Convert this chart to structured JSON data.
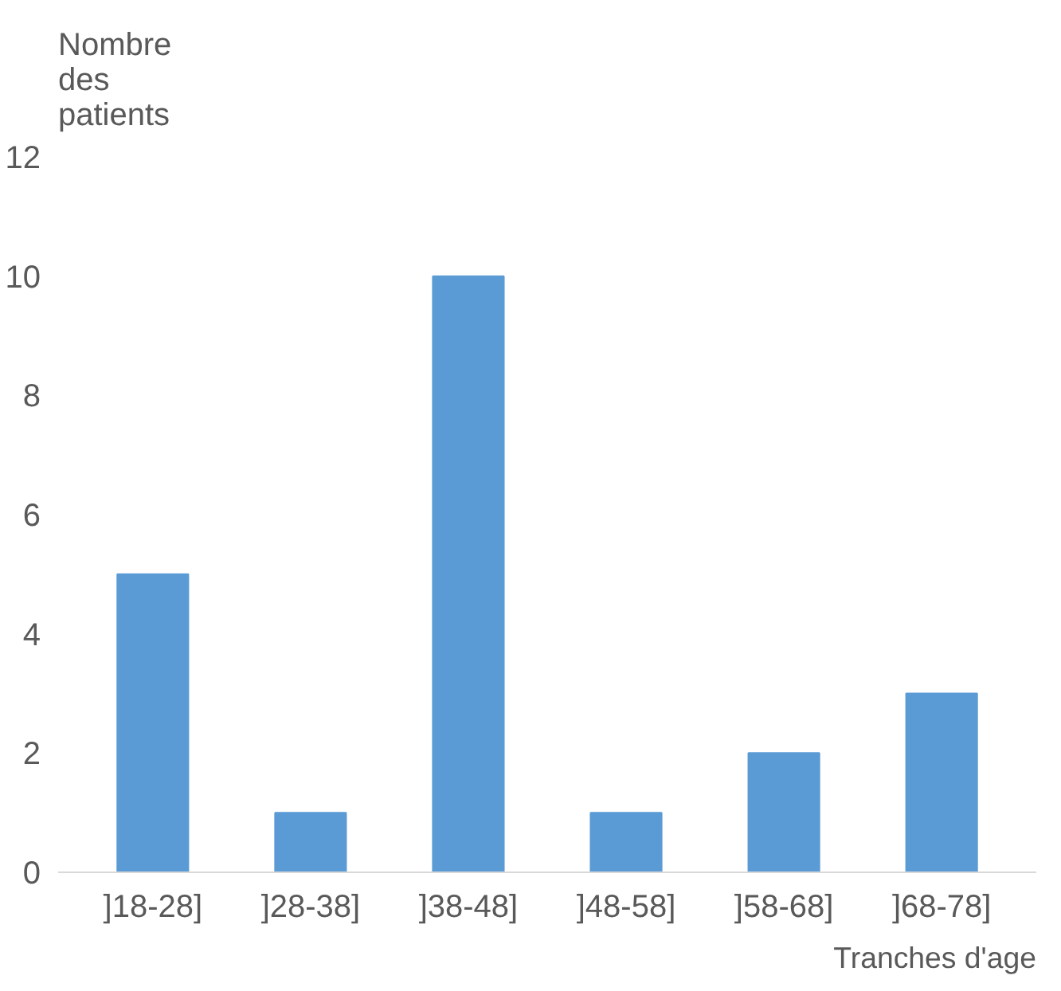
{
  "chart_data": {
    "type": "bar",
    "xlabel": "Tranches d'age",
    "ylabel": "Nombre des patients",
    "categories": [
      "]18-28]",
      "]28-38]",
      "]38-48]",
      "]48-58]",
      "]58-68]",
      "]68-78]"
    ],
    "values": [
      5,
      1,
      10,
      1,
      2,
      3
    ],
    "color": "#5b9bd5",
    "ylim": [
      0,
      12
    ],
    "yticks": [
      0,
      2,
      4,
      6,
      8,
      10,
      12
    ],
    "grid": false
  }
}
